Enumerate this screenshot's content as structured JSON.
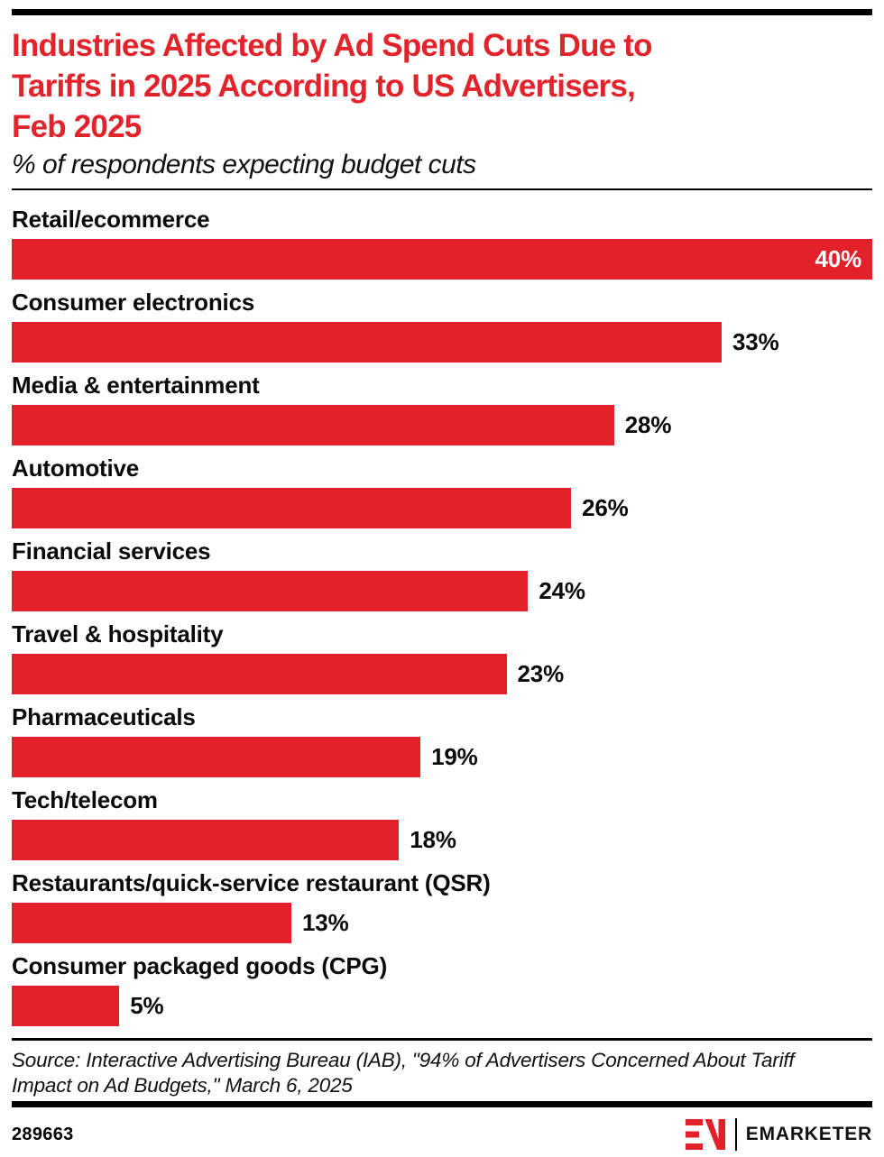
{
  "colors": {
    "accent_red": "#e3212a",
    "text_black": "#0a0a0a",
    "background": "#ffffff"
  },
  "header": {
    "title_lines": [
      "Industries Affected by Ad Spend Cuts Due to",
      "Tariffs in 2025 According to US Advertisers,",
      "Feb 2025"
    ],
    "subtitle": "% of respondents expecting budget cuts"
  },
  "chart_data": {
    "type": "bar",
    "orientation": "horizontal",
    "title": "Industries Affected by Ad Spend Cuts Due to Tariffs in 2025 According to US Advertisers, Feb 2025",
    "subtitle": "% of respondents expecting budget cuts",
    "xlim": [
      0,
      40
    ],
    "grid": false,
    "bar_color": "#e3212a",
    "value_label_style": "bold, outside right of bar; max bar label inside in white",
    "categories": [
      "Retail/ecommerce",
      "Consumer electronics",
      "Media & entertainment",
      "Automotive",
      "Financial services",
      "Travel & hospitality",
      "Pharmaceuticals",
      "Tech/telecom",
      "Restaurants/quick-service restaurant (QSR)",
      "Consumer packaged goods (CPG)"
    ],
    "values": [
      40,
      33,
      28,
      26,
      24,
      23,
      19,
      18,
      13,
      5
    ],
    "value_labels": [
      "40%",
      "33%",
      "28%",
      "26%",
      "24%",
      "23%",
      "19%",
      "18%",
      "13%",
      "5%"
    ]
  },
  "footer": {
    "source": "Source: Interactive Advertising Bureau (IAB), \"94% of Advertisers Concerned About Tariff Impact on Ad Budgets,\" March 6, 2025",
    "source_lines": [
      "Source: Interactive Advertising Bureau (IAB), \"94% of Advertisers Concerned About Tariff",
      "Impact on Ad Budgets,\" March 6, 2025"
    ],
    "chart_id": "289663",
    "brand_wordmark": "EMARKETER"
  }
}
